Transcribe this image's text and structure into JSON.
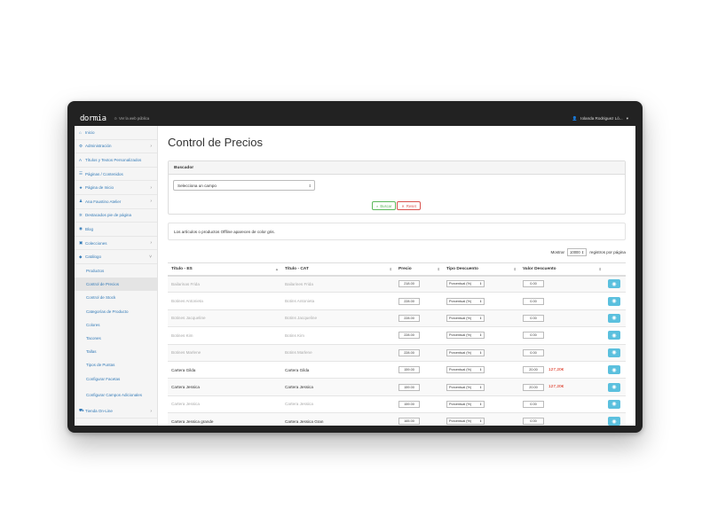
{
  "topbar": {
    "logo": "dormia",
    "public_site": "Ver la web pública",
    "user_name": "Iolanda Rodriguez Ló..."
  },
  "sidebar": {
    "items": [
      {
        "label": "Inicio",
        "icon": "home-icon",
        "caret": false
      },
      {
        "label": "Administración",
        "icon": "gear-icon",
        "caret": true
      },
      {
        "label": "Títulos y Textos Personalizados",
        "icon": "text-icon",
        "caret": false
      },
      {
        "label": "Páginas / Contenidos",
        "icon": "list-icon",
        "caret": false
      },
      {
        "label": "Página de Inicio",
        "icon": "star-icon",
        "caret": true
      },
      {
        "label": "Ana Faustino Atelier",
        "icon": "users-icon",
        "caret": true
      },
      {
        "label": "Destacados pie de página",
        "icon": "gears-icon",
        "caret": false
      },
      {
        "label": "Blog",
        "icon": "rss-icon",
        "caret": false
      },
      {
        "label": "Colecciones",
        "icon": "image-icon",
        "caret": true
      },
      {
        "label": "Catálogo",
        "icon": "tag-icon",
        "caret": true
      }
    ],
    "sub_items": [
      {
        "label": "Productos"
      },
      {
        "label": "Control de Precios",
        "active": true
      },
      {
        "label": "Control de Stock"
      },
      {
        "label": "Categorías de Producto"
      },
      {
        "label": "Colores"
      },
      {
        "label": "Tacones"
      },
      {
        "label": "Tallas"
      },
      {
        "label": "Tipos de Puntas"
      },
      {
        "label": "Configurar Facetas"
      },
      {
        "label": "Configurar Campos Adicionales"
      }
    ],
    "last_item": {
      "label": "Tienda On-Line",
      "icon": "cart-icon"
    }
  },
  "main": {
    "title": "Control de Precios",
    "search_panel": {
      "heading": "Buscador",
      "select_value": "Selecciona un campo",
      "search_label": "Buscar",
      "reset_label": "Reset"
    },
    "info_text": "Los artículos o productos Offline aparecen de color gris.",
    "length": {
      "show": "Mostrar",
      "value": "10000",
      "suffix": "registros por página"
    },
    "columns": [
      "Título - ES",
      "Título - CAT",
      "Precio",
      "Tipo Descuento",
      "Valor Descuento",
      ""
    ],
    "rows": [
      {
        "es": "Bailarinas Frida",
        "cat": "Bailarines Frida",
        "price": "218.00",
        "type": "Porcentual (%)",
        "discount": "0.00",
        "final": "",
        "offline": true
      },
      {
        "es": "Botines Antonieta",
        "cat": "Botins Antonieta",
        "price": "228.00",
        "type": "Porcentual (%)",
        "discount": "0.00",
        "final": "",
        "offline": true
      },
      {
        "es": "Botines Jacqueline",
        "cat": "Botins Jacqueline",
        "price": "228.00",
        "type": "Porcentual (%)",
        "discount": "0.00",
        "final": "",
        "offline": true
      },
      {
        "es": "Botines Kim",
        "cat": "Botins Kim",
        "price": "228.00",
        "type": "Porcentual (%)",
        "discount": "0.00",
        "final": "",
        "offline": true
      },
      {
        "es": "Botines Marlene",
        "cat": "Botins Marlene",
        "price": "228.00",
        "type": "Porcentual (%)",
        "discount": "0.00",
        "final": "",
        "offline": true
      },
      {
        "es": "Cartera Gilda",
        "cat": "Cartera Gilda",
        "price": "159.00",
        "type": "Porcentual (%)",
        "discount": "20.00",
        "final": "127,20€",
        "offline": false
      },
      {
        "es": "Cartera Jessica",
        "cat": "Cartera Jessica",
        "price": "159.00",
        "type": "Porcentual (%)",
        "discount": "20.00",
        "final": "127,20€",
        "offline": false
      },
      {
        "es": "Cartera Jessica",
        "cat": "Cartera Jessica",
        "price": "159.00",
        "type": "Porcentual (%)",
        "discount": "0.00",
        "final": "",
        "offline": true
      },
      {
        "es": "Cartera Jessica grande",
        "cat": "Cartera Jessica Gran",
        "price": "165.00",
        "type": "Porcentual (%)",
        "discount": "0.00",
        "final": "",
        "offline": false
      }
    ]
  }
}
